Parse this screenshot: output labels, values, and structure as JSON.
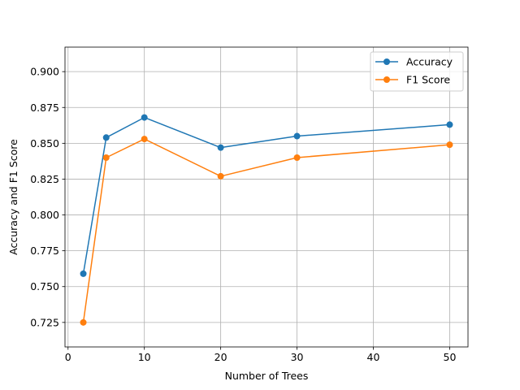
{
  "chart_data": {
    "type": "line",
    "title": "",
    "xlabel": "Number of Trees",
    "ylabel": "Accuracy and F1 Score",
    "x": [
      2,
      5,
      10,
      20,
      30,
      50
    ],
    "series": [
      {
        "name": "Accuracy",
        "color": "#1f77b4",
        "values": [
          0.759,
          0.854,
          0.868,
          0.847,
          0.855,
          0.863
        ]
      },
      {
        "name": "F1 Score",
        "color": "#ff7f0e",
        "values": [
          0.725,
          0.84,
          0.853,
          0.827,
          0.84,
          0.849
        ]
      }
    ],
    "xlim": [
      -0.4,
      52.4
    ],
    "ylim": [
      0.7079,
      0.9171
    ],
    "xticks": [
      0,
      10,
      20,
      30,
      40,
      50
    ],
    "yticks": [
      0.725,
      0.75,
      0.775,
      0.8,
      0.825,
      0.85,
      0.875,
      0.9
    ],
    "xtick_labels": [
      "0",
      "10",
      "20",
      "30",
      "40",
      "50"
    ],
    "ytick_labels": [
      "0.725",
      "0.750",
      "0.775",
      "0.800",
      "0.825",
      "0.850",
      "0.875",
      "0.900"
    ],
    "grid": true,
    "legend_position": "top-right",
    "marker": "circle"
  }
}
